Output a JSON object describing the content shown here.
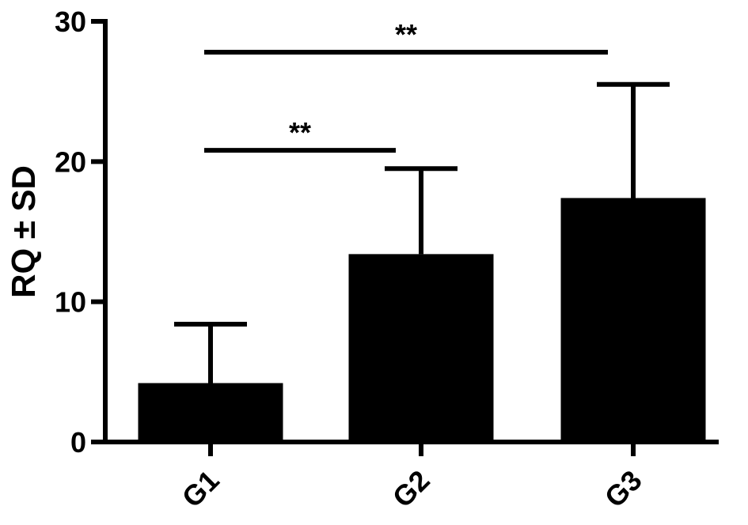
{
  "chart_data": {
    "type": "bar",
    "title": "",
    "xlabel": "",
    "ylabel": "RQ ± SD",
    "categories": [
      "G1",
      "G2",
      "G3"
    ],
    "values": [
      4.2,
      13.4,
      17.4
    ],
    "errors": [
      4.2,
      6.1,
      8.1
    ],
    "ylim": [
      0,
      30
    ],
    "yticks": [
      0,
      10,
      20,
      30
    ],
    "grid": false,
    "bar_color": "#000000",
    "significance": [
      {
        "from": "G1",
        "to": "G2",
        "y": 20.8,
        "label": "**"
      },
      {
        "from": "G1",
        "to": "G3",
        "y": 27.8,
        "label": "**"
      }
    ]
  }
}
